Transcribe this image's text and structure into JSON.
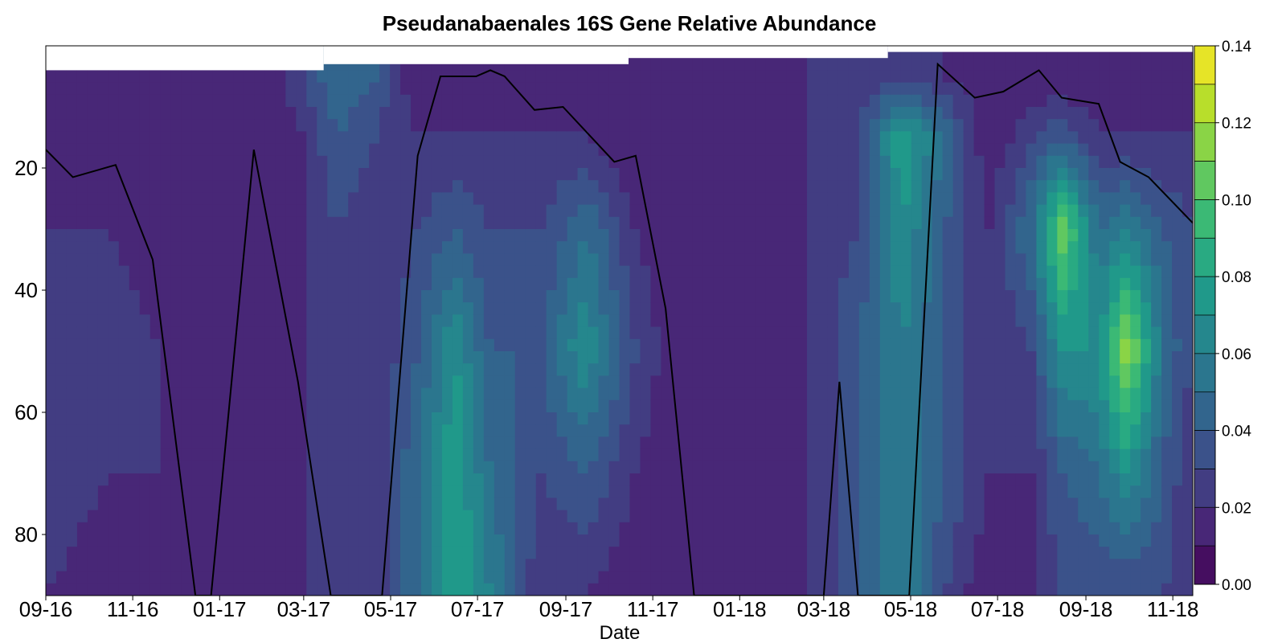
{
  "chart_data": {
    "type": "heatmap",
    "subtype": "filled-contour-with-line",
    "title": "Pseudanabaenales 16S Gene Relative Abundance",
    "xlabel": "Date",
    "ylabel": "",
    "colormap": "viridis",
    "y_inverted": true,
    "ylim": [
      0,
      90
    ],
    "xlim": [
      "2016-09-01",
      "2018-11-15"
    ],
    "x_ticks": [
      {
        "date": "2016-09-01",
        "label": "09-16"
      },
      {
        "date": "2016-11-01",
        "label": "11-16"
      },
      {
        "date": "2017-01-01",
        "label": "01-17"
      },
      {
        "date": "2017-03-01",
        "label": "03-17"
      },
      {
        "date": "2017-05-01",
        "label": "05-17"
      },
      {
        "date": "2017-07-01",
        "label": "07-17"
      },
      {
        "date": "2017-09-01",
        "label": "09-17"
      },
      {
        "date": "2017-11-01",
        "label": "11-17"
      },
      {
        "date": "2018-01-01",
        "label": "01-18"
      },
      {
        "date": "2018-03-01",
        "label": "03-18"
      },
      {
        "date": "2018-05-01",
        "label": "05-18"
      },
      {
        "date": "2018-07-01",
        "label": "07-18"
      },
      {
        "date": "2018-09-01",
        "label": "09-18"
      },
      {
        "date": "2018-11-01",
        "label": "11-18"
      }
    ],
    "y_ticks": [
      20,
      40,
      60,
      80
    ],
    "colorbar": {
      "min": 0,
      "max": 0.14,
      "levels": [
        0,
        0.01,
        0.02,
        0.03,
        0.04,
        0.05,
        0.06,
        0.07,
        0.08,
        0.09,
        0.1,
        0.11,
        0.12,
        0.13,
        0.14
      ],
      "tick_labels": [
        "0.00",
        "0.02",
        "0.04",
        "0.06",
        "0.08",
        "0.10",
        "0.12",
        "0.14"
      ],
      "tick_values": [
        0,
        0.02,
        0.04,
        0.06,
        0.08,
        0.1,
        0.12,
        0.14
      ]
    },
    "depth_profile": {
      "depths": [
        5,
        15,
        30,
        50,
        70,
        90
      ],
      "samples": [
        {
          "date": "2016-09-01",
          "values": [
            0.01,
            0.01,
            0.02,
            0.03,
            0.03,
            0.02
          ]
        },
        {
          "date": "2016-10-15",
          "values": [
            0.01,
            0.01,
            0.02,
            0.03,
            0.02,
            0.01
          ]
        },
        {
          "date": "2016-11-20",
          "values": [
            0.01,
            0.01,
            0.01,
            0.02,
            0.02,
            0.01
          ]
        },
        {
          "date": "2017-02-01",
          "values": [
            0.01,
            0.01,
            0.01,
            0.01,
            0.01,
            0.01
          ]
        },
        {
          "date": "2017-03-01",
          "values": [
            0.03,
            0.02,
            0.02,
            0.02,
            0.02,
            0.02
          ]
        },
        {
          "date": "2017-03-25",
          "values": [
            0.05,
            0.04,
            0.03,
            0.03,
            0.03,
            0.03
          ]
        },
        {
          "date": "2017-04-20",
          "values": [
            0.04,
            0.03,
            0.02,
            0.02,
            0.02,
            0.02
          ]
        },
        {
          "date": "2017-05-20",
          "values": [
            0.01,
            0.02,
            0.03,
            0.04,
            0.05,
            0.05
          ]
        },
        {
          "date": "2017-06-15",
          "values": [
            0.01,
            0.02,
            0.04,
            0.07,
            0.08,
            0.08
          ]
        },
        {
          "date": "2017-07-10",
          "values": [
            0.02,
            0.02,
            0.03,
            0.04,
            0.05,
            0.06
          ]
        },
        {
          "date": "2017-08-15",
          "values": [
            0.01,
            0.02,
            0.03,
            0.04,
            0.03,
            0.02
          ]
        },
        {
          "date": "2017-09-15",
          "values": [
            0.01,
            0.02,
            0.05,
            0.07,
            0.04,
            0.02
          ]
        },
        {
          "date": "2017-10-20",
          "values": [
            0.01,
            0.01,
            0.02,
            0.03,
            0.02,
            0.01
          ]
        },
        {
          "date": "2017-11-20",
          "values": [
            0.01,
            0.01,
            0.01,
            0.01,
            0.01,
            0.01
          ]
        },
        {
          "date": "2018-01-15",
          "values": [
            0.01,
            0.01,
            0.01,
            0.01,
            0.01,
            0.01
          ]
        },
        {
          "date": "2018-02-20",
          "values": [
            0.02,
            0.02,
            0.02,
            0.02,
            0.02,
            0.02
          ]
        },
        {
          "date": "2018-03-25",
          "values": [
            0.02,
            0.03,
            0.03,
            0.04,
            0.04,
            0.04
          ]
        },
        {
          "date": "2018-04-25",
          "values": [
            0.03,
            0.08,
            0.07,
            0.06,
            0.06,
            0.06
          ]
        },
        {
          "date": "2018-05-25",
          "values": [
            0.02,
            0.05,
            0.04,
            0.04,
            0.04,
            0.03
          ]
        },
        {
          "date": "2018-06-25",
          "values": [
            0.01,
            0.01,
            0.02,
            0.02,
            0.02,
            0.01
          ]
        },
        {
          "date": "2018-07-25",
          "values": [
            0.01,
            0.03,
            0.05,
            0.03,
            0.02,
            0.02
          ]
        },
        {
          "date": "2018-08-15",
          "values": [
            0.01,
            0.04,
            0.11,
            0.07,
            0.04,
            0.03
          ]
        },
        {
          "date": "2018-09-10",
          "values": [
            0.01,
            0.02,
            0.05,
            0.07,
            0.05,
            0.03
          ]
        },
        {
          "date": "2018-09-30",
          "values": [
            0.01,
            0.02,
            0.06,
            0.12,
            0.07,
            0.03
          ]
        },
        {
          "date": "2018-10-25",
          "values": [
            0.01,
            0.02,
            0.04,
            0.05,
            0.04,
            0.03
          ]
        },
        {
          "date": "2018-11-15",
          "values": [
            0.01,
            0.02,
            0.03,
            0.03,
            0.02,
            0.02
          ]
        }
      ]
    },
    "line_series": {
      "color": "#000000",
      "points": [
        {
          "date": "2016-09-01",
          "y": 17
        },
        {
          "date": "2016-09-20",
          "y": 21.5
        },
        {
          "date": "2016-10-20",
          "y": 19.5
        },
        {
          "date": "2016-11-15",
          "y": 35
        },
        {
          "date": "2016-12-15",
          "y": 90
        },
        {
          "date": "2016-12-26",
          "y": 90
        },
        {
          "date": "2017-01-25",
          "y": 17
        },
        {
          "date": "2017-02-25",
          "y": 55
        },
        {
          "date": "2017-03-20",
          "y": 90
        },
        {
          "date": "2017-04-25",
          "y": 90
        },
        {
          "date": "2017-05-20",
          "y": 18
        },
        {
          "date": "2017-06-05",
          "y": 5
        },
        {
          "date": "2017-06-30",
          "y": 5
        },
        {
          "date": "2017-07-10",
          "y": 4
        },
        {
          "date": "2017-07-20",
          "y": 5
        },
        {
          "date": "2017-08-10",
          "y": 10.5
        },
        {
          "date": "2017-08-30",
          "y": 10
        },
        {
          "date": "2017-10-05",
          "y": 19
        },
        {
          "date": "2017-10-20",
          "y": 18
        },
        {
          "date": "2017-11-10",
          "y": 43
        },
        {
          "date": "2017-11-30",
          "y": 90
        },
        {
          "date": "2018-03-01",
          "y": 90
        },
        {
          "date": "2018-03-12",
          "y": 55
        },
        {
          "date": "2018-03-25",
          "y": 90
        },
        {
          "date": "2018-04-30",
          "y": 90
        },
        {
          "date": "2018-05-20",
          "y": 3
        },
        {
          "date": "2018-06-15",
          "y": 8.5
        },
        {
          "date": "2018-07-05",
          "y": 7.5
        },
        {
          "date": "2018-07-30",
          "y": 4
        },
        {
          "date": "2018-08-15",
          "y": 8.5
        },
        {
          "date": "2018-09-10",
          "y": 9.5
        },
        {
          "date": "2018-09-25",
          "y": 19
        },
        {
          "date": "2018-10-15",
          "y": 21.5
        },
        {
          "date": "2018-11-15",
          "y": 29
        }
      ]
    },
    "sampling_boundary": {
      "segments": [
        {
          "from": "2016-09-01",
          "to": "2017-03-15",
          "y": 4
        },
        {
          "from": "2017-03-15",
          "to": "2017-10-15",
          "y": 3
        },
        {
          "from": "2017-10-15",
          "to": "2018-04-15",
          "y": 2
        },
        {
          "from": "2018-04-15",
          "to": "2018-11-15",
          "y": 1
        }
      ]
    }
  }
}
